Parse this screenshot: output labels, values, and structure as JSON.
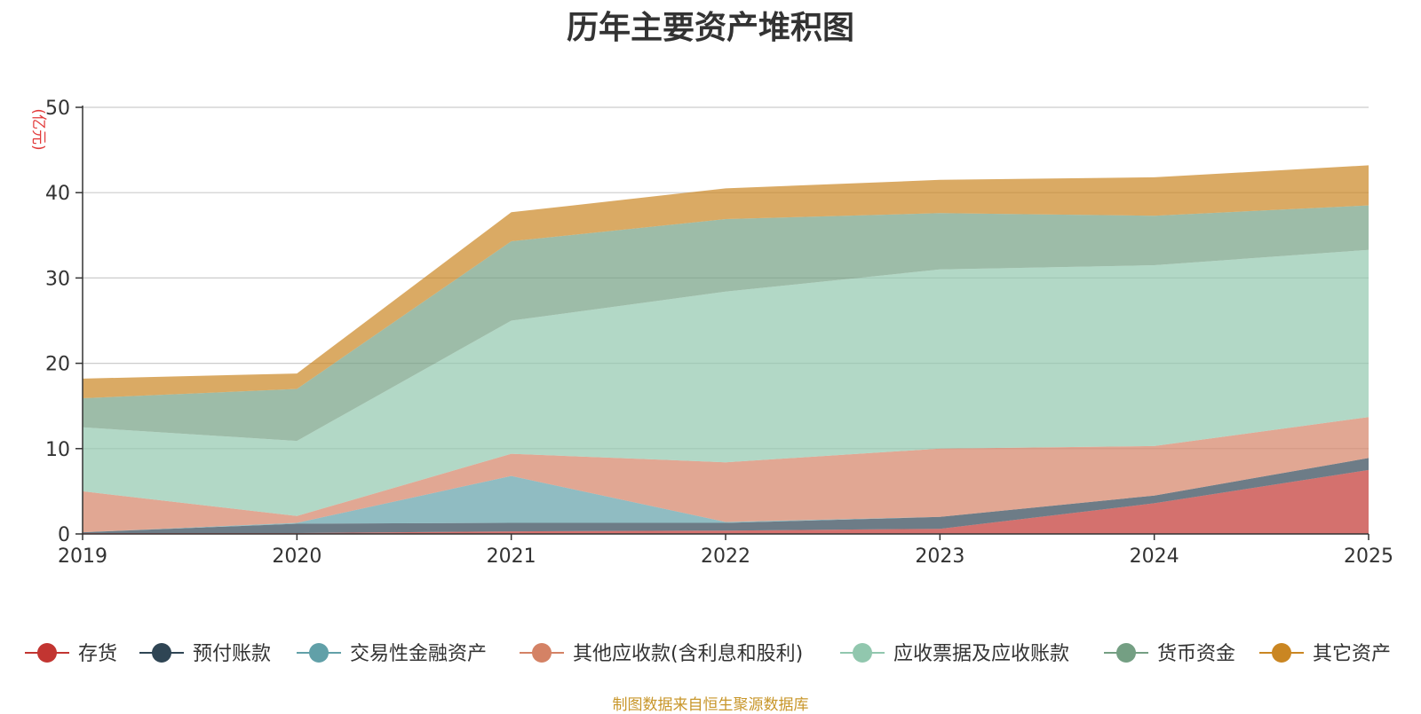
{
  "chart_data": {
    "type": "area",
    "stacked": true,
    "title": "历年主要资产堆积图",
    "ylabel": "(亿元)",
    "xlabel": "",
    "x": [
      "2019",
      "2020",
      "2021",
      "2022",
      "2023",
      "2024",
      "2025"
    ],
    "ylim": [
      0,
      50
    ],
    "yticks": [
      0,
      10,
      20,
      30,
      40,
      50
    ],
    "grid": true,
    "legend_position": "bottom",
    "series": [
      {
        "name": "存货",
        "color": "#c23531",
        "values": [
          0.1,
          0.1,
          0.3,
          0.4,
          0.6,
          3.6,
          7.5
        ]
      },
      {
        "name": "预付账款",
        "color": "#2f4554",
        "values": [
          0.1,
          1.1,
          1.0,
          0.9,
          1.4,
          0.9,
          1.4
        ]
      },
      {
        "name": "交易性金融资产",
        "color": "#61a0a8",
        "values": [
          0.0,
          0.1,
          5.5,
          0.1,
          0.0,
          0.0,
          0.0
        ]
      },
      {
        "name": "其他应收款(含利息和股利)",
        "color": "#d48265",
        "values": [
          4.8,
          0.8,
          2.6,
          7.0,
          8.0,
          5.8,
          4.8
        ]
      },
      {
        "name": "应收票据及应收账款",
        "color": "#91c7ae",
        "values": [
          7.5,
          8.8,
          15.6,
          20.0,
          21.0,
          21.2,
          19.6
        ]
      },
      {
        "name": "货币资金",
        "color": "#749f83",
        "values": [
          3.4,
          6.1,
          9.3,
          8.5,
          6.6,
          5.8,
          5.2
        ]
      },
      {
        "name": "其它资产",
        "color": "#ca8622",
        "values": [
          2.3,
          1.8,
          3.4,
          3.6,
          3.9,
          4.5,
          4.7
        ]
      }
    ]
  },
  "source_note": "制图数据来自恒生聚源数据库"
}
